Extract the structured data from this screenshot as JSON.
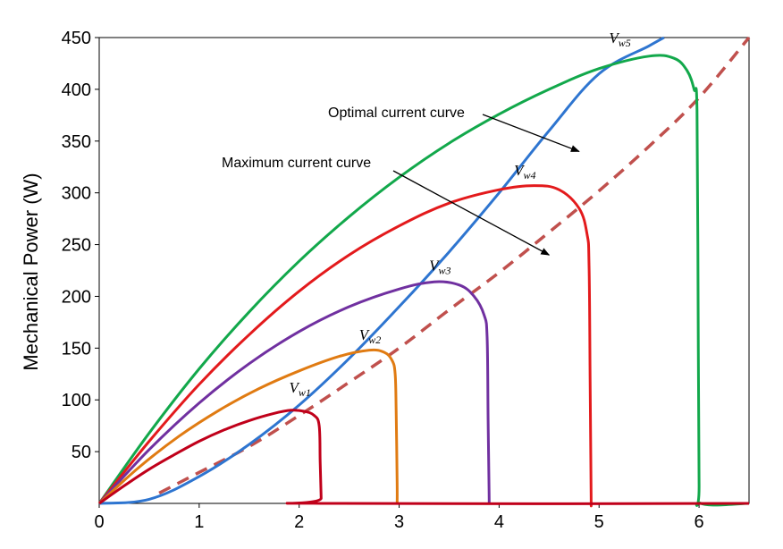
{
  "chart_data": {
    "type": "line",
    "title": "",
    "xlabel": "",
    "ylabel": "Mechanical Power (W)",
    "xlim": [
      0,
      6.5
    ],
    "ylim": [
      0,
      450
    ],
    "xticks": [
      0,
      1,
      2,
      3,
      4,
      5,
      6
    ],
    "yticks": [
      50,
      100,
      150,
      200,
      250,
      300,
      350,
      400,
      450
    ],
    "grid": false,
    "legend": "none",
    "series": [
      {
        "name": "Vw1",
        "label_main": "V",
        "label_sub": "w1",
        "color": "#c0001a",
        "style": "solid",
        "x": [
          0,
          0.25,
          0.5,
          0.75,
          1.0,
          1.25,
          1.5,
          1.75,
          1.92,
          2.05,
          2.15,
          2.2,
          2.21,
          2.22,
          2.22,
          6.5
        ],
        "y": [
          0,
          17,
          33,
          47,
          60,
          71,
          80,
          87,
          90,
          89,
          85,
          75,
          40,
          5,
          0,
          0
        ]
      },
      {
        "name": "Vw2",
        "label_main": "V",
        "label_sub": "w2",
        "color": "#e07b12",
        "style": "solid",
        "x": [
          0,
          0.4,
          0.8,
          1.2,
          1.6,
          2.0,
          2.4,
          2.7,
          2.85,
          2.93,
          2.96,
          2.97,
          2.98,
          2.98
        ],
        "y": [
          0,
          35,
          65,
          90,
          111,
          128,
          142,
          148,
          146,
          138,
          125,
          90,
          20,
          0
        ]
      },
      {
        "name": "Vw3",
        "label_main": "V",
        "label_sub": "w3",
        "color": "#7030a0",
        "style": "solid",
        "x": [
          0,
          0.5,
          1.0,
          1.5,
          2.0,
          2.5,
          3.0,
          3.35,
          3.6,
          3.75,
          3.85,
          3.88,
          3.89,
          3.9,
          3.9
        ],
        "y": [
          0,
          52,
          97,
          135,
          166,
          190,
          207,
          214,
          211,
          200,
          182,
          160,
          80,
          10,
          0
        ]
      },
      {
        "name": "Vw4",
        "label_main": "V",
        "label_sub": "w4",
        "color": "#e31a1c",
        "style": "solid",
        "x": [
          0,
          0.5,
          1.0,
          1.5,
          2.0,
          2.5,
          3.0,
          3.5,
          4.0,
          4.35,
          4.6,
          4.8,
          4.88,
          4.9,
          4.91,
          4.92,
          4.92
        ],
        "y": [
          0,
          60,
          115,
          163,
          205,
          240,
          268,
          290,
          303,
          307,
          303,
          285,
          260,
          230,
          120,
          10,
          0
        ]
      },
      {
        "name": "Vw5",
        "label_main": "V",
        "label_sub": "w5",
        "color": "#12a84b",
        "style": "solid",
        "x": [
          0,
          0.5,
          1.0,
          1.5,
          2.0,
          2.5,
          3.0,
          3.5,
          4.0,
          4.5,
          5.0,
          5.5,
          5.75,
          5.88,
          5.95,
          5.98,
          5.99,
          6.0,
          6.02,
          6.5
        ],
        "y": [
          0,
          68,
          130,
          185,
          234,
          277,
          315,
          348,
          376,
          400,
          420,
          432,
          430,
          418,
          400,
          380,
          200,
          20,
          0,
          0
        ]
      },
      {
        "name": "Optimal current curve",
        "color": "#2e75d0",
        "style": "solid",
        "x": [
          0,
          0.5,
          1.0,
          1.5,
          2.0,
          2.5,
          3.0,
          3.5,
          4.0,
          4.5,
          5.0,
          5.5,
          5.65
        ],
        "y": [
          0,
          4,
          26,
          57,
          95,
          140,
          190,
          243,
          300,
          360,
          415,
          442,
          450
        ]
      },
      {
        "name": "Maximum current curve",
        "color": "#c0504d",
        "style": "dashed",
        "x": [
          0.6,
          1.0,
          1.5,
          2.0,
          2.5,
          3.0,
          3.5,
          4.0,
          4.5,
          5.0,
          5.5,
          6.0,
          6.5
        ],
        "y": [
          10,
          30,
          55,
          85,
          117,
          150,
          187,
          223,
          262,
          302,
          345,
          392,
          450
        ]
      }
    ],
    "annotations": [
      {
        "text": "Optimal current curve",
        "anchor_x": 4.8,
        "anchor_y": 340
      },
      {
        "text": "Maximum current curve",
        "anchor_x": 4.5,
        "anchor_y": 240
      }
    ]
  }
}
